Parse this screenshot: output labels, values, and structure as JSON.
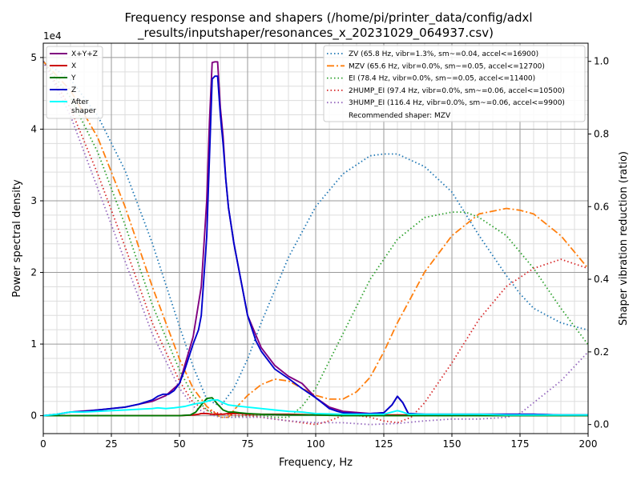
{
  "chart_data": {
    "type": "line",
    "title_line1": "Frequency response and shapers (/home/pi/printer_data/config/adxl",
    "title_line2": "_results/inputshaper/resonances_x_20231029_064937.csv)",
    "xlabel": "Frequency, Hz",
    "ylabel": "Power spectral density",
    "y2label": "Shaper vibration reduction (ratio)",
    "y_multiplier": "1e4",
    "xlim": [
      0,
      200
    ],
    "ylim": [
      -0.25,
      5.2
    ],
    "y2lim": [
      -0.025,
      1.05
    ],
    "xticks": [
      "0",
      "25",
      "50",
      "75",
      "100",
      "125",
      "150",
      "175",
      "200"
    ],
    "yticks": [
      "0",
      "1",
      "2",
      "3",
      "4",
      "5"
    ],
    "y2ticks": [
      "0.0",
      "0.2",
      "0.4",
      "0.6",
      "0.8",
      "1.0"
    ],
    "grid": true,
    "psd_legend_placement": "top-left",
    "shaper_legend_placement": "top-right",
    "recommended": "Recommended shaper: MZV",
    "psd_series": [
      {
        "name": "X+Y+Z",
        "color": "#800080",
        "x": [
          0,
          5,
          10,
          20,
          30,
          40,
          45,
          50,
          55,
          58,
          60,
          61,
          62,
          63,
          64,
          65,
          66,
          67,
          68,
          70,
          72,
          75,
          80,
          85,
          90,
          95,
          100,
          105,
          110,
          120,
          125,
          128,
          130,
          132,
          134,
          140,
          150,
          160,
          170,
          180,
          190,
          200
        ],
        "y": [
          0,
          0.02,
          0.05,
          0.08,
          0.12,
          0.2,
          0.28,
          0.45,
          1.1,
          1.8,
          3.0,
          4.1,
          4.93,
          4.94,
          4.94,
          4.3,
          3.9,
          3.3,
          2.9,
          2.4,
          2.0,
          1.4,
          0.95,
          0.7,
          0.55,
          0.45,
          0.25,
          0.12,
          0.06,
          0.03,
          0.04,
          0.15,
          0.27,
          0.18,
          0.03,
          0.02,
          0.02,
          0.02,
          0.02,
          0.02,
          0.01,
          0.01
        ]
      },
      {
        "name": "X",
        "color": "#cc0000",
        "x": [
          0,
          5,
          10,
          20,
          30,
          40,
          50,
          55,
          57,
          58,
          60,
          62,
          64,
          66,
          68,
          70,
          72,
          75,
          80,
          90,
          100,
          110,
          120,
          130,
          140,
          150,
          160,
          170,
          180,
          190,
          200
        ],
        "y": [
          0,
          0,
          0,
          0,
          0,
          0,
          0,
          0.01,
          0.02,
          0.03,
          0.03,
          0.02,
          0.02,
          0.02,
          0.03,
          0.03,
          0.03,
          0.02,
          0.02,
          0.02,
          0.01,
          0.01,
          0.01,
          0.01,
          0.01,
          0,
          0,
          0,
          0,
          0,
          0
        ]
      },
      {
        "name": "Y",
        "color": "#007700",
        "x": [
          0,
          5,
          10,
          20,
          30,
          40,
          50,
          54,
          56,
          58,
          60,
          62,
          64,
          66,
          68,
          70,
          72,
          75,
          80,
          90,
          100,
          110,
          120,
          130,
          140,
          150,
          160,
          170,
          180,
          190,
          200
        ],
        "y": [
          0,
          0,
          0,
          0,
          0,
          0,
          0,
          0.01,
          0.05,
          0.15,
          0.24,
          0.25,
          0.16,
          0.08,
          0.05,
          0.05,
          0.04,
          0.03,
          0.02,
          0.01,
          0.01,
          0,
          0,
          0,
          0,
          0,
          0,
          0,
          0,
          0,
          0
        ]
      },
      {
        "name": "Z",
        "color": "#0000cc",
        "x": [
          0,
          5,
          10,
          15,
          20,
          25,
          30,
          35,
          40,
          42,
          44,
          46,
          48,
          50,
          52,
          55,
          57,
          58,
          60,
          61,
          62,
          63,
          64,
          65,
          66,
          67,
          68,
          70,
          72,
          75,
          78,
          80,
          85,
          90,
          95,
          100,
          103,
          105,
          108,
          110,
          115,
          120,
          125,
          128,
          130,
          132,
          134,
          140,
          150,
          160,
          170,
          180,
          190,
          200
        ],
        "y": [
          0,
          0.02,
          0.05,
          0.06,
          0.08,
          0.1,
          0.12,
          0.16,
          0.22,
          0.27,
          0.3,
          0.3,
          0.35,
          0.45,
          0.65,
          1.0,
          1.2,
          1.4,
          2.5,
          3.6,
          4.7,
          4.74,
          4.74,
          4.2,
          3.8,
          3.3,
          2.9,
          2.4,
          2.0,
          1.4,
          1.05,
          0.9,
          0.65,
          0.52,
          0.38,
          0.25,
          0.16,
          0.1,
          0.06,
          0.04,
          0.03,
          0.03,
          0.04,
          0.15,
          0.27,
          0.18,
          0.03,
          0.02,
          0.02,
          0.02,
          0.02,
          0.02,
          0.01,
          0.01
        ]
      },
      {
        "name": "After\nshaper",
        "color": "#00ffff",
        "x": [
          0,
          5,
          8,
          10,
          12,
          15,
          20,
          25,
          30,
          35,
          40,
          42,
          45,
          48,
          50,
          52,
          55,
          58,
          60,
          62,
          64,
          66,
          68,
          70,
          75,
          80,
          85,
          90,
          95,
          100,
          110,
          120,
          125,
          128,
          130,
          132,
          134,
          140,
          150,
          160,
          170,
          180,
          190,
          200
        ],
        "y": [
          0,
          0.02,
          0.04,
          0.05,
          0.05,
          0.05,
          0.06,
          0.07,
          0.08,
          0.09,
          0.1,
          0.11,
          0.1,
          0.11,
          0.12,
          0.13,
          0.16,
          0.18,
          0.2,
          0.22,
          0.22,
          0.18,
          0.15,
          0.14,
          0.12,
          0.1,
          0.08,
          0.06,
          0.05,
          0.03,
          0.02,
          0.02,
          0.02,
          0.05,
          0.07,
          0.05,
          0.02,
          0.02,
          0.02,
          0.02,
          0.01,
          0.01,
          0.01,
          0.01
        ]
      }
    ],
    "shaper_series": [
      {
        "name": "ZV (65.8 Hz, vibr=1.3%, sm~=0.04, accel<=16900)",
        "color": "#1f77b4",
        "dash": "1.5,3",
        "x": [
          0,
          10,
          20,
          30,
          40,
          50,
          55,
          60,
          65,
          70,
          75,
          80,
          90,
          100,
          110,
          120,
          125,
          130,
          140,
          150,
          160,
          170,
          175,
          180,
          190,
          200
        ],
        "y": [
          1.0,
          0.95,
          0.85,
          0.7,
          0.5,
          0.27,
          0.16,
          0.07,
          0.05,
          0.1,
          0.18,
          0.28,
          0.46,
          0.6,
          0.69,
          0.74,
          0.745,
          0.745,
          0.71,
          0.64,
          0.52,
          0.41,
          0.36,
          0.32,
          0.28,
          0.26
        ]
      },
      {
        "name": "MZV (65.6 Hz, vibr=0.0%, sm~=0.05, accel<=12700)",
        "color": "#ff7f0e",
        "dash": "9,3,2,3",
        "x": [
          0,
          10,
          20,
          30,
          40,
          50,
          55,
          60,
          65,
          68,
          70,
          75,
          80,
          85,
          90,
          95,
          100,
          105,
          110,
          115,
          120,
          125,
          130,
          135,
          140,
          150,
          160,
          170,
          175,
          180,
          190,
          200
        ],
        "y": [
          1.0,
          0.92,
          0.79,
          0.6,
          0.38,
          0.18,
          0.1,
          0.05,
          0.02,
          0.02,
          0.04,
          0.08,
          0.11,
          0.125,
          0.12,
          0.1,
          0.08,
          0.07,
          0.07,
          0.09,
          0.13,
          0.2,
          0.28,
          0.35,
          0.42,
          0.52,
          0.58,
          0.595,
          0.59,
          0.58,
          0.52,
          0.43
        ]
      },
      {
        "name": "EI (78.4 Hz, vibr=0.0%, sm~=0.05, accel<=11400)",
        "color": "#2ca02c",
        "dash": "1.5,3",
        "x": [
          0,
          10,
          20,
          30,
          40,
          50,
          55,
          60,
          65,
          70,
          75,
          80,
          85,
          90,
          95,
          100,
          110,
          120,
          130,
          140,
          150,
          155,
          160,
          170,
          180,
          190,
          200
        ],
        "y": [
          1.0,
          0.9,
          0.75,
          0.55,
          0.33,
          0.15,
          0.08,
          0.04,
          0.02,
          0.02,
          0.025,
          0.025,
          0.02,
          0.02,
          0.05,
          0.1,
          0.25,
          0.4,
          0.51,
          0.57,
          0.585,
          0.585,
          0.57,
          0.52,
          0.43,
          0.32,
          0.22
        ]
      },
      {
        "name": "2HUMP_EI (97.4 Hz, vibr=0.0%, sm~=0.06, accel<=10500)",
        "color": "#d62728",
        "dash": "1.5,3",
        "x": [
          0,
          10,
          20,
          30,
          40,
          50,
          55,
          60,
          65,
          70,
          75,
          80,
          85,
          90,
          95,
          100,
          105,
          110,
          115,
          120,
          125,
          130,
          135,
          140,
          150,
          160,
          170,
          180,
          190,
          200
        ],
        "y": [
          1.0,
          0.87,
          0.69,
          0.49,
          0.28,
          0.12,
          0.06,
          0.04,
          0.03,
          0.025,
          0.025,
          0.02,
          0.015,
          0.01,
          0.005,
          0.0,
          0.01,
          0.025,
          0.025,
          0.02,
          0.01,
          0.005,
          0.02,
          0.06,
          0.17,
          0.29,
          0.38,
          0.43,
          0.455,
          0.43
        ]
      },
      {
        "name": "3HUMP_EI (116.4 Hz, vibr=0.0%, sm~=0.06, accel<=9900)",
        "color": "#9467bd",
        "dash": "1.5,3",
        "x": [
          0,
          10,
          20,
          30,
          40,
          50,
          55,
          60,
          65,
          70,
          75,
          80,
          90,
          100,
          110,
          120,
          130,
          140,
          150,
          160,
          170,
          175,
          180,
          190,
          200
        ],
        "y": [
          1.0,
          0.85,
          0.65,
          0.45,
          0.25,
          0.1,
          0.05,
          0.03,
          0.02,
          0.02,
          0.02,
          0.02,
          0.01,
          0.005,
          0.005,
          0.0,
          0.003,
          0.01,
          0.015,
          0.015,
          0.02,
          0.03,
          0.06,
          0.12,
          0.2
        ]
      }
    ]
  }
}
